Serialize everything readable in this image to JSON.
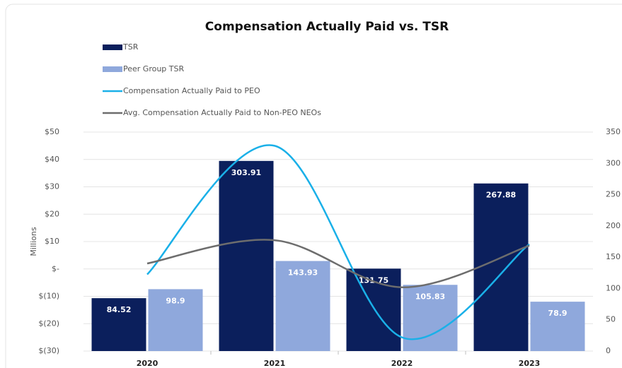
{
  "chart_data": {
    "type": "combo",
    "title": "Compensation Actually Paid vs. TSR",
    "y_label": "Millions",
    "categories": [
      "2020",
      "2021",
      "2022",
      "2023"
    ],
    "ylim": [
      -30,
      50
    ],
    "yticks": [
      {
        "value": -30,
        "label": "$(30)"
      },
      {
        "value": -20,
        "label": "$(20)"
      },
      {
        "value": -10,
        "label": "$(10)"
      },
      {
        "value": 0,
        "label": "$-"
      },
      {
        "value": 10,
        "label": "$10"
      },
      {
        "value": 20,
        "label": "$20"
      },
      {
        "value": 30,
        "label": "$30"
      },
      {
        "value": 40,
        "label": "$40"
      },
      {
        "value": 50,
        "label": "$50"
      }
    ],
    "y2lim": [
      0,
      350
    ],
    "y2ticks": [
      0,
      50,
      100,
      150,
      200,
      250,
      300,
      350
    ],
    "grid": true,
    "legend": "top-left",
    "series": [
      {
        "name": "TSR",
        "type": "bar",
        "axis": "y2",
        "color": "#0b1f5c",
        "values": [
          84.52,
          303.91,
          131.75,
          267.88
        ]
      },
      {
        "name": "Peer Group TSR",
        "type": "bar",
        "axis": "y2",
        "color": "#8fa8dc",
        "values": [
          98.9,
          143.93,
          105.83,
          78.9
        ]
      },
      {
        "name": "Compensation Actually Paid to PEO",
        "type": "line",
        "axis": "y",
        "color": "#1ab0e8",
        "values": [
          -2,
          45,
          -25,
          9
        ]
      },
      {
        "name": "Avg. Compensation Actually Paid to Non-PEO NEOs",
        "type": "line",
        "axis": "y",
        "color": "#6d6d6d",
        "values": [
          2,
          10.5,
          -6.7,
          8.5
        ]
      }
    ]
  }
}
